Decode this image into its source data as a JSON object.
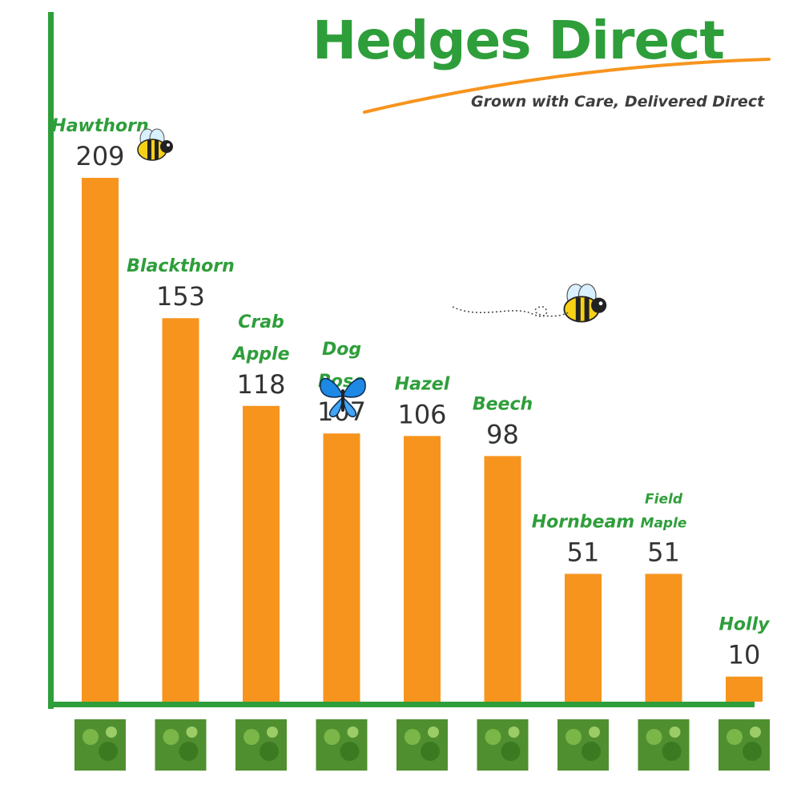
{
  "brand": {
    "name": "Hedges Direct",
    "tagline": "Grown with Care, Delivered Direct"
  },
  "colors": {
    "bar": "#F7941E",
    "axis": "#2E9E3A",
    "label": "#2E9E3A",
    "value": "#333333",
    "swoosh": "#F7941E"
  },
  "chart_data": {
    "type": "bar",
    "categories": [
      "Hawthorn",
      "Blackthorn",
      "Crab Apple",
      "Dog Rose",
      "Hazel",
      "Beech",
      "Hornbeam",
      "Field Maple",
      "Holly"
    ],
    "values": [
      209,
      153,
      118,
      107,
      106,
      98,
      51,
      51,
      10
    ],
    "title": "",
    "xlabel": "",
    "ylabel": "",
    "grid": false,
    "legend": "none"
  },
  "decorations": {
    "icons": [
      "bee-icon",
      "bee-icon",
      "butterfly-icon"
    ],
    "category_photos": [
      "hawthorn-photo",
      "blackthorn-photo",
      "crab-apple-photo",
      "dog-rose-photo",
      "hazel-photo",
      "beech-photo",
      "hornbeam-photo",
      "field-maple-photo",
      "holly-photo"
    ]
  }
}
